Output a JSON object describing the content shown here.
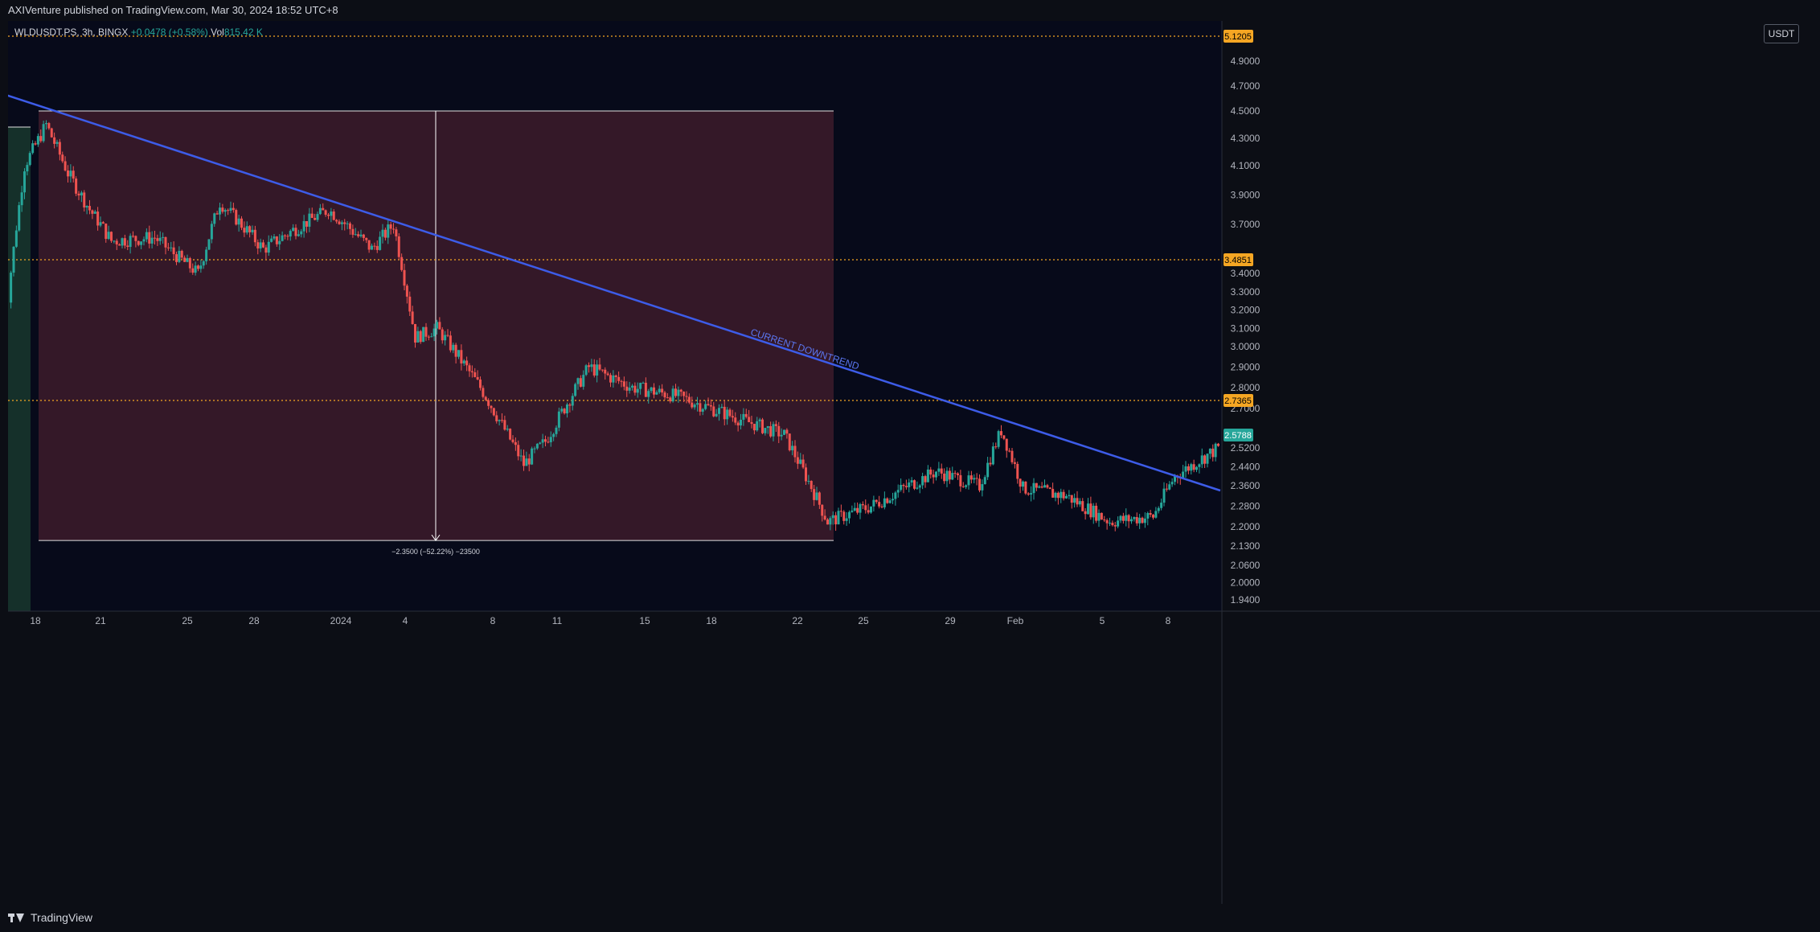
{
  "header": {
    "published": "AXIVenture published on TradingView.com, Mar 30, 2024 18:52 UTC+8"
  },
  "legend": {
    "symbol": "WLDUSDT.PS, 3h, BINGX",
    "change": "+0.0478 (+0.58%)",
    "vol_label": "Vol",
    "vol_value": "815.42 K"
  },
  "footer": {
    "brand": "TradingView"
  },
  "colors": {
    "background": "#0c0e15",
    "up": "#26a69a",
    "down": "#ef5350",
    "trendline": "#3d5ce8",
    "hline": "#f5a623",
    "range_fill": "#3a1a2a"
  },
  "chart_data": {
    "type": "candlestick",
    "unit": "USDT",
    "y_ticks": [
      "4.9000",
      "4.7000",
      "4.5000",
      "4.3000",
      "4.1000",
      "3.9000",
      "3.7000",
      "3.4000",
      "3.3000",
      "3.2000",
      "3.1000",
      "3.0000",
      "2.9000",
      "2.8000",
      "2.7000",
      "2.5200",
      "2.4400",
      "2.3600",
      "2.2800",
      "2.2000",
      "2.1300",
      "2.0600",
      "2.0000",
      "1.9400"
    ],
    "x_ticks": [
      "18",
      "21",
      "25",
      "28",
      "2024",
      "4",
      "8",
      "11",
      "15",
      "18",
      "22",
      "25",
      "29",
      "Feb",
      "5",
      "8"
    ],
    "price_labels": [
      {
        "value": "5.1205",
        "color": "#f5a623"
      },
      {
        "value": "3.4851",
        "color": "#f5a623"
      },
      {
        "value": "2.7365",
        "color": "#f5a623"
      },
      {
        "value": "2.5788",
        "color": "#26a69a"
      }
    ],
    "trendline_label": "CURRENT DOWNTREND",
    "measure": {
      "label": "−2.3500 (−52.22%) −23500"
    },
    "key_points": [
      {
        "x": "Dec 16",
        "close": 3.0
      },
      {
        "x": "Dec 17",
        "close": 4.1
      },
      {
        "x": "Dec 18",
        "close": 4.4
      },
      {
        "x": "Dec 19",
        "close": 4.05
      },
      {
        "x": "Dec 20",
        "close": 3.8
      },
      {
        "x": "Dec 21",
        "close": 3.6
      },
      {
        "x": "Dec 23",
        "close": 3.62
      },
      {
        "x": "Dec 25",
        "close": 3.4
      },
      {
        "x": "Dec 26",
        "close": 3.85
      },
      {
        "x": "Dec 28",
        "close": 3.55
      },
      {
        "x": "Dec 31",
        "close": 3.8
      },
      {
        "x": "Jan 2",
        "close": 3.55
      },
      {
        "x": "Jan 3",
        "close": 3.7
      },
      {
        "x": "Jan 4",
        "close": 3.05
      },
      {
        "x": "Jan 5",
        "close": 3.1
      },
      {
        "x": "Jan 7",
        "close": 2.8
      },
      {
        "x": "Jan 9",
        "close": 2.45
      },
      {
        "x": "Jan 10",
        "close": 2.55
      },
      {
        "x": "Jan 12",
        "close": 2.9
      },
      {
        "x": "Jan 14",
        "close": 2.8
      },
      {
        "x": "Jan 16",
        "close": 2.76
      },
      {
        "x": "Jan 19",
        "close": 2.65
      },
      {
        "x": "Jan 21",
        "close": 2.58
      },
      {
        "x": "Jan 23",
        "close": 2.22
      },
      {
        "x": "Jan 25",
        "close": 2.28
      },
      {
        "x": "Jan 28",
        "close": 2.42
      },
      {
        "x": "Jan 30",
        "close": 2.36
      },
      {
        "x": "Jan 31",
        "close": 2.6
      },
      {
        "x": "Feb 1",
        "close": 2.35
      },
      {
        "x": "Feb 3",
        "close": 2.32
      },
      {
        "x": "Feb 5",
        "close": 2.22
      },
      {
        "x": "Feb 7",
        "close": 2.24
      },
      {
        "x": "Feb 8",
        "close": 2.4
      },
      {
        "x": "Feb 10",
        "close": 2.52
      }
    ]
  }
}
